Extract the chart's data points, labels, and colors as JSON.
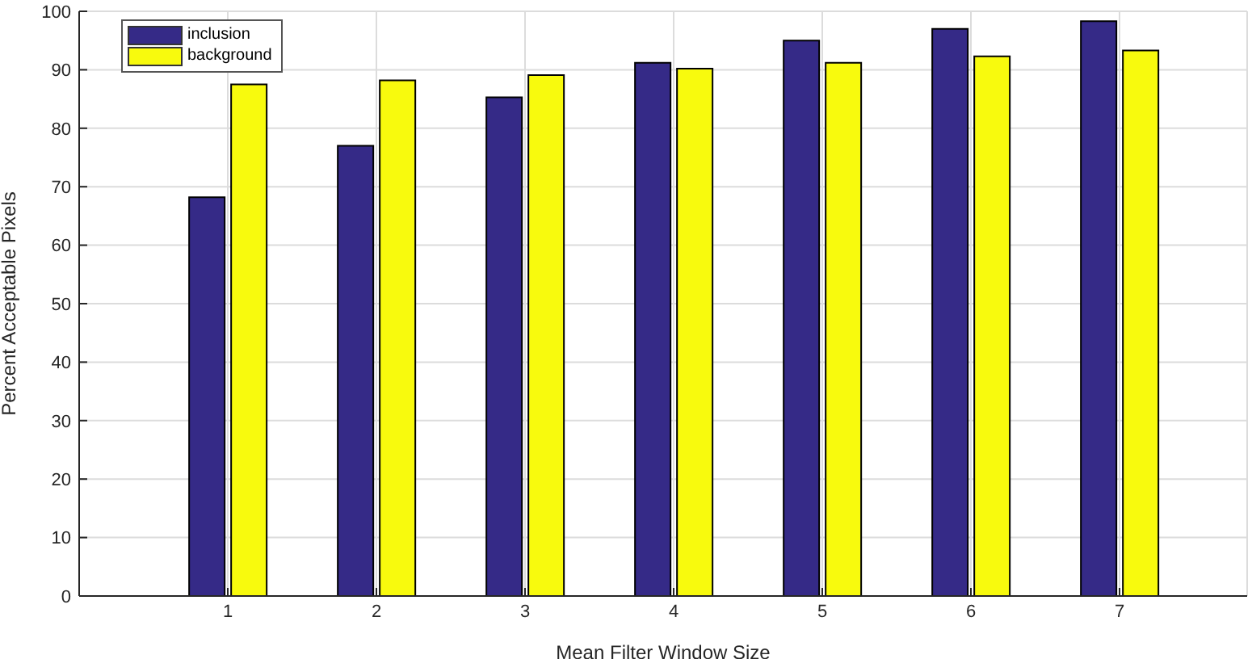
{
  "chart_data": {
    "type": "bar",
    "xlabel": "Mean Filter Window Size",
    "ylabel": "Percent Acceptable Pixels",
    "categories": [
      "1",
      "2",
      "3",
      "4",
      "5",
      "6",
      "7"
    ],
    "series": [
      {
        "name": "inclusion",
        "color": "#352a87",
        "values": [
          68.2,
          77.0,
          85.3,
          91.2,
          95.0,
          97.0,
          98.3
        ]
      },
      {
        "name": "background",
        "color": "#f8fa0d",
        "values": [
          87.5,
          88.2,
          89.1,
          90.2,
          91.2,
          92.3,
          93.3
        ]
      }
    ],
    "ylim": [
      0,
      100
    ],
    "yticks": [
      0,
      10,
      20,
      30,
      40,
      50,
      60,
      70,
      80,
      90,
      100
    ],
    "grid": true,
    "legend": "top left"
  }
}
